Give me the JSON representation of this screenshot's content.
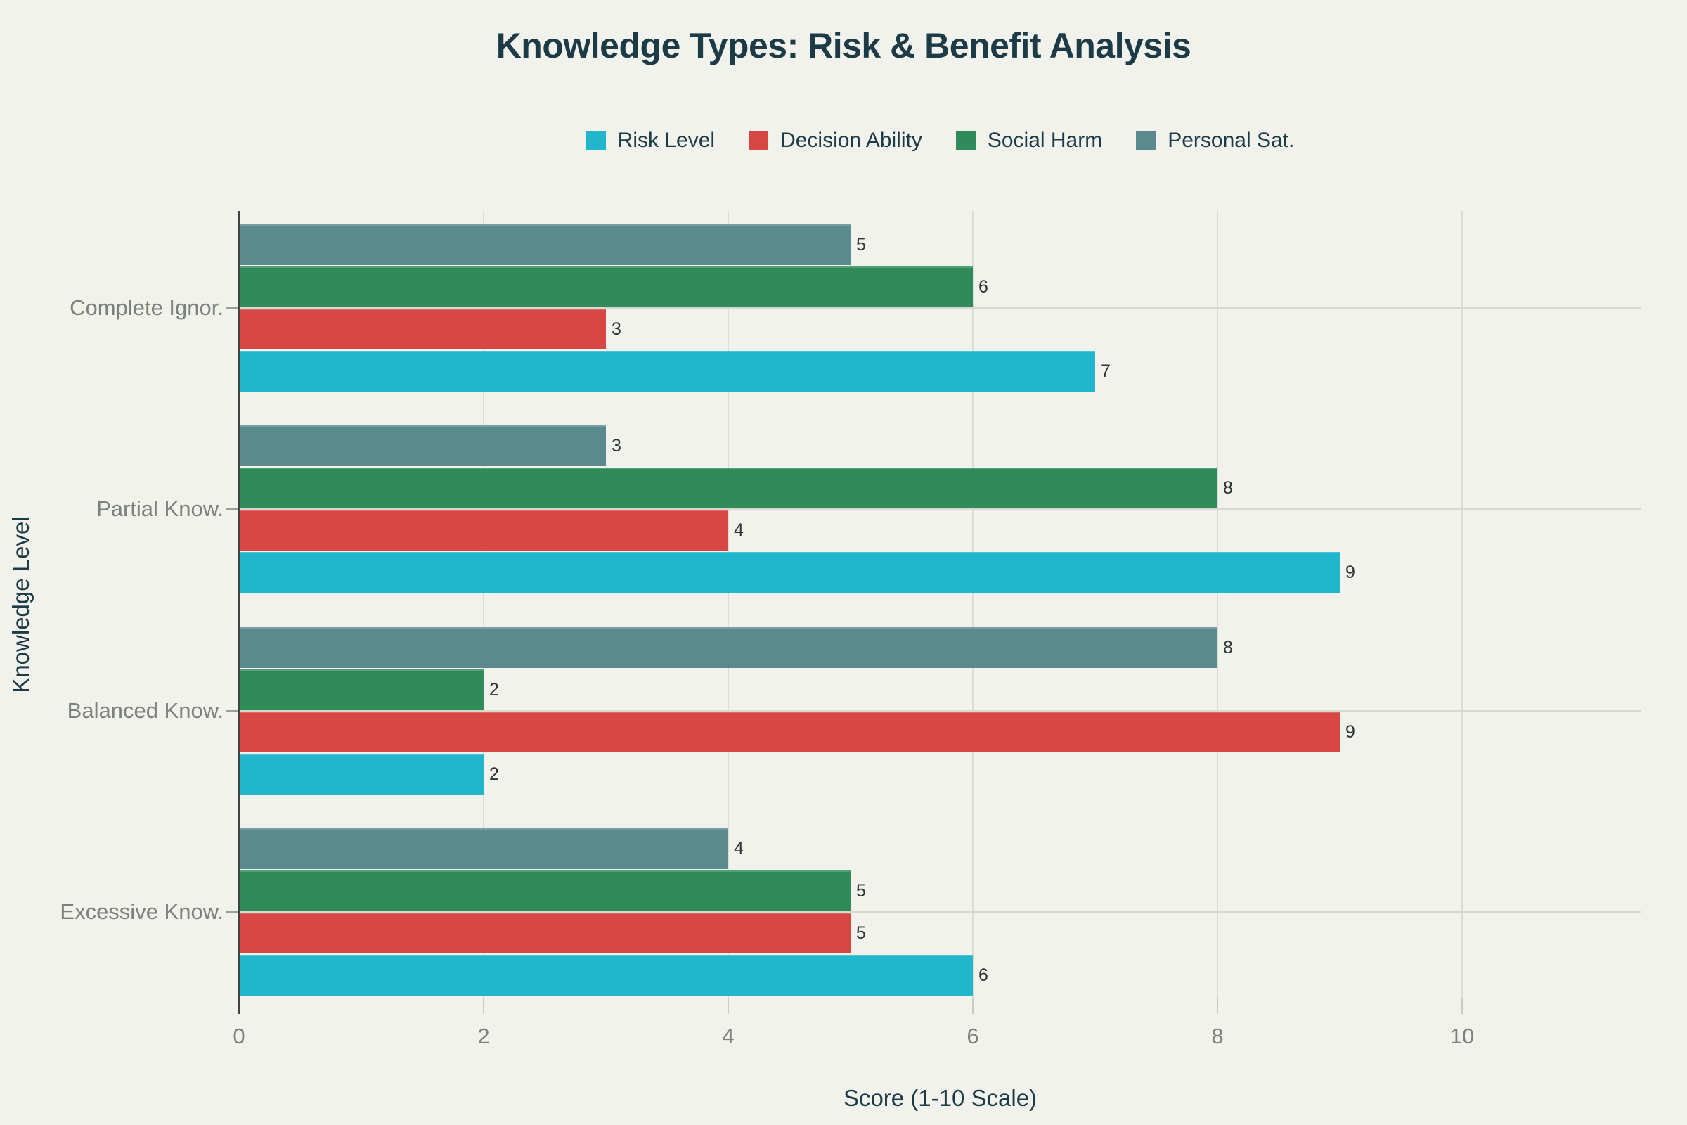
{
  "chart_data": {
    "type": "bar",
    "orientation": "horizontal",
    "title": "Knowledge Types: Risk & Benefit Analysis",
    "xlabel": "Score (1-10 Scale)",
    "ylabel": "Knowledge Level",
    "categories": [
      "Complete Ignor.",
      "Partial Know.",
      "Balanced Know.",
      "Excessive Know."
    ],
    "series": [
      {
        "name": "Risk Level",
        "color": "#22b6cc",
        "values": [
          7,
          9,
          2,
          6
        ]
      },
      {
        "name": "Decision Ability",
        "color": "#d84743",
        "values": [
          3,
          4,
          9,
          5
        ]
      },
      {
        "name": "Social Harm",
        "color": "#2f8c58",
        "values": [
          6,
          8,
          2,
          5
        ]
      },
      {
        "name": "Personal Sat.",
        "color": "#5a898e",
        "values": [
          5,
          3,
          8,
          4
        ]
      }
    ],
    "bar_order_top_to_bottom": [
      "Personal Sat.",
      "Social Harm",
      "Decision Ability",
      "Risk Level"
    ],
    "xticks": [
      0,
      2,
      4,
      6,
      8,
      10
    ],
    "xlim": [
      0,
      11.5
    ],
    "grid": true,
    "legend_position": "top-center",
    "bar_value_labels": true,
    "colors": {
      "background": "#f1f2ec",
      "title_text": "#1c3b46",
      "tick_text": "#7c827b",
      "value_text": "#2d3633",
      "gridline_vertical": "#dbddd5",
      "gridline_horizontal": "#d7d9d1",
      "axis_spine": "#3f4543",
      "axis_tick": "#c9ccc3"
    }
  }
}
